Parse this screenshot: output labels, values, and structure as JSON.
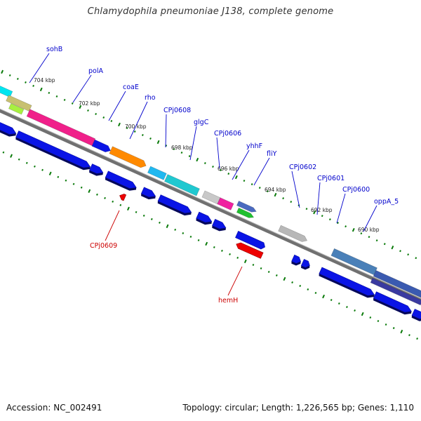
{
  "title": "Chlamydophila pneumoniae J138, complete genome",
  "footer": {
    "accession": "Accession: NC_002491",
    "info": "Topology: circular; Length: 1,226,565 bp; Genes: 1,110"
  },
  "colors": {
    "forward_label": "#0000cc",
    "reverse_label": "#cc0000",
    "cds_blue": "#0a14e6",
    "tick_green": "#0a7a0a",
    "backbone": "#808080"
  },
  "kbp_labels": [
    "704 kbp",
    "702 kbp",
    "700 kbp",
    "698 kbp",
    "696 kbp",
    "694 kbp",
    "692 kbp",
    "690 kbp"
  ],
  "forward_genes": [
    "sohB",
    "polA",
    "coaE",
    "rho",
    "CPj0608",
    "glgC",
    "CPj0606",
    "yhhF",
    "fliY",
    "CPj0602",
    "CPj0601",
    "CPj0600",
    "oppA_5"
  ],
  "reverse_genes": [
    "CPj0609",
    "hemH"
  ]
}
